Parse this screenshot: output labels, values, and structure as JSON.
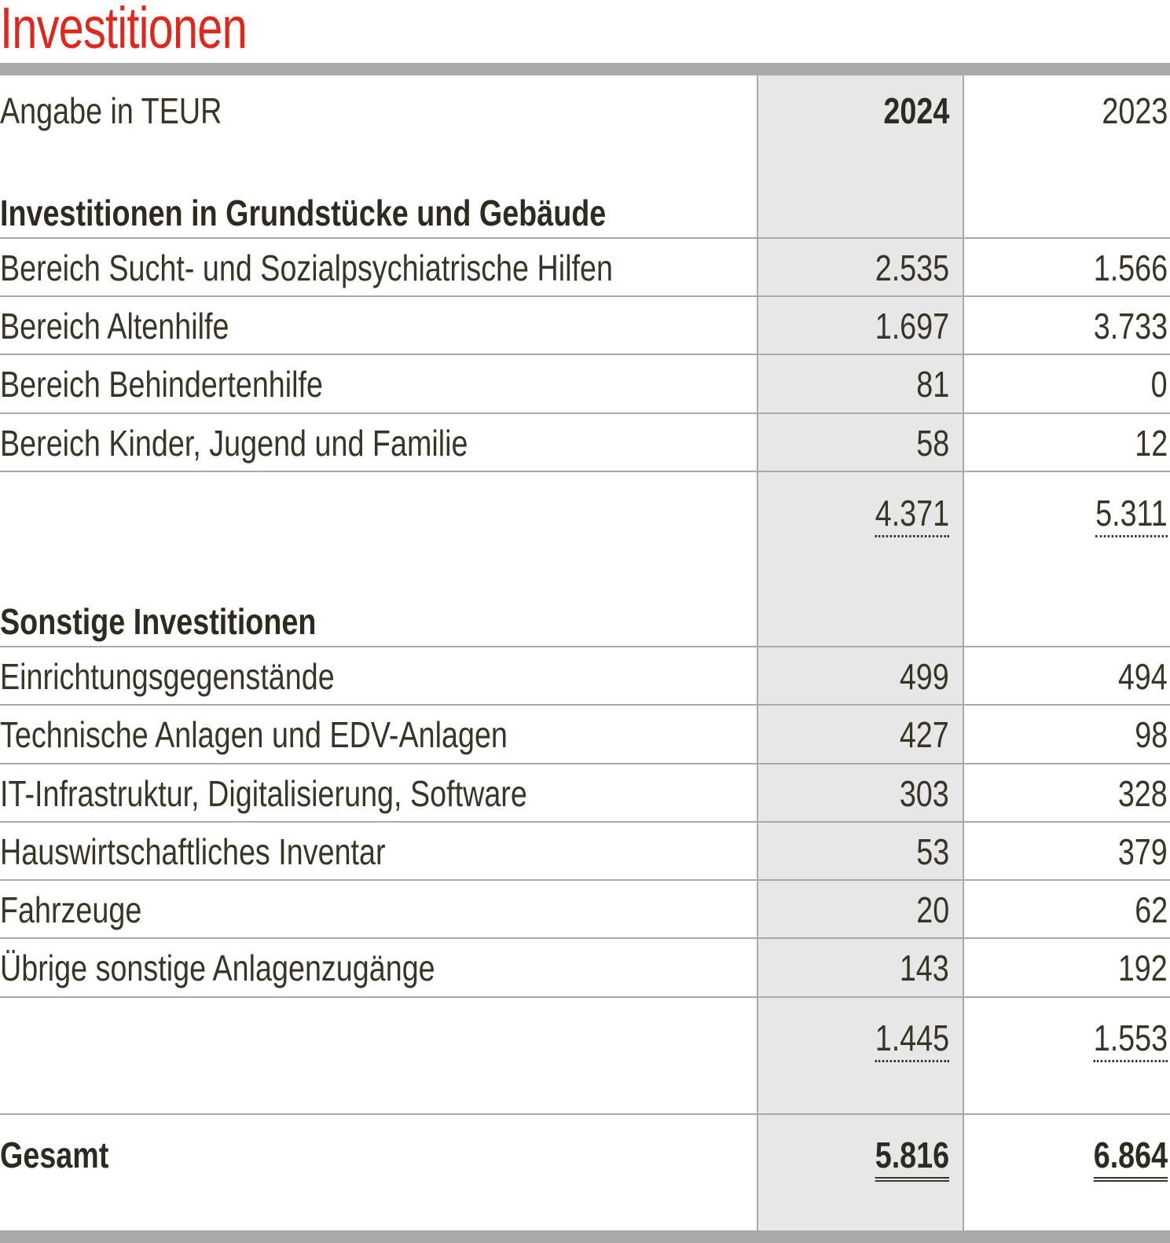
{
  "title": "Investitionen",
  "header": {
    "unit_label": "Angabe in TEUR",
    "year_current": "2024",
    "year_previous": "2023"
  },
  "section1": {
    "heading": "Investitionen in Grundstücke und Gebäude",
    "rows": [
      {
        "label": "Bereich Sucht- und Sozialpsychiatrische Hilfen",
        "v2024": "2.535",
        "v2023": "1.566"
      },
      {
        "label": "Bereich Altenhilfe",
        "v2024": "1.697",
        "v2023": "3.733"
      },
      {
        "label": "Bereich Behindertenhilfe",
        "v2024": "81",
        "v2023": "0"
      },
      {
        "label": "Bereich Kinder, Jugend und Familie",
        "v2024": "58",
        "v2023": "12"
      }
    ],
    "subtotal_2024": "4.371",
    "subtotal_2023": "5.311"
  },
  "section2": {
    "heading": "Sonstige Investitionen",
    "rows": [
      {
        "label": "Einrichtungsgegenstände",
        "v2024": "499",
        "v2023": "494"
      },
      {
        "label": "Technische Anlagen und EDV-Anlagen",
        "v2024": "427",
        "v2023": "98"
      },
      {
        "label": "IT-Infrastruktur, Digitalisierung, Software",
        "v2024": "303",
        "v2023": "328"
      },
      {
        "label": "Hauswirtschaftliches Inventar",
        "v2024": "53",
        "v2023": "379"
      },
      {
        "label": "Fahrzeuge",
        "v2024": "20",
        "v2023": "62"
      },
      {
        "label": "Übrige sonstige Anlagenzugänge",
        "v2024": "143",
        "v2023": "192"
      }
    ],
    "subtotal_2024": "1.445",
    "subtotal_2023": "1.553"
  },
  "total": {
    "label": "Gesamt",
    "v2024": "5.816",
    "v2023": "6.864"
  },
  "colors": {
    "title": "#e1261c",
    "text": "#3a3426",
    "rule": "#a9a9a9",
    "highlight_column": "#e7e7e7"
  }
}
